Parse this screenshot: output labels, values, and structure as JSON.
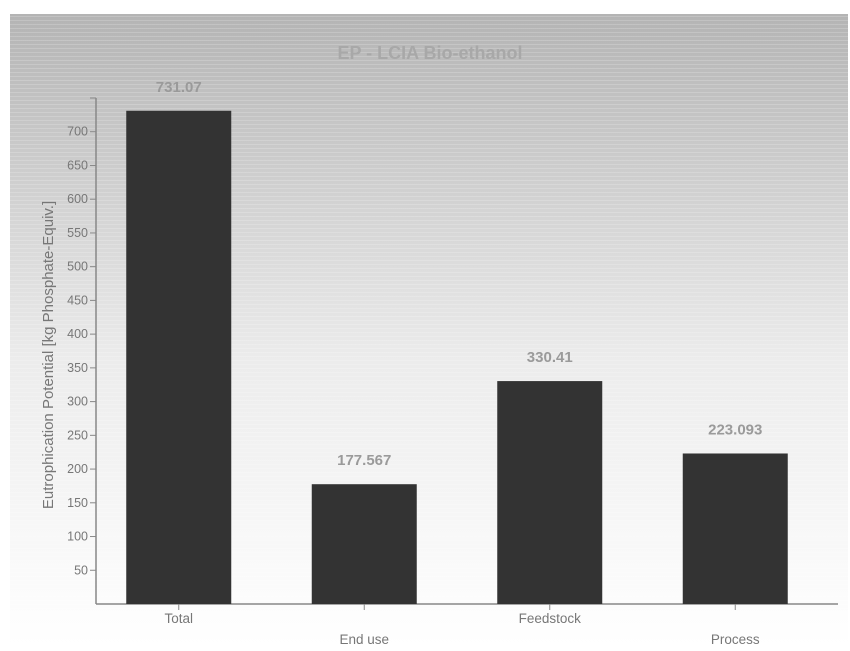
{
  "chart_data": {
    "type": "bar",
    "title": "EP - LCIA Bio-ethanol",
    "ylabel": "Eutrophication Potential [kg Phosphate-Equiv.]",
    "xlabel": "",
    "categories": [
      "Total",
      "End use",
      "Feedstock",
      "Process"
    ],
    "values": [
      731.07,
      177.567,
      330.41,
      223.093
    ],
    "value_labels": [
      "731.07",
      "177.567",
      "330.41",
      "223.093"
    ],
    "ylim": [
      0,
      750
    ],
    "yticks": [
      50,
      100,
      150,
      200,
      250,
      300,
      350,
      400,
      450,
      500,
      550,
      600,
      650,
      700
    ],
    "grid": false,
    "legend": "none",
    "colors": {
      "bar": "#333333",
      "value_label": "#9a9a9a",
      "axis_text": "#777777",
      "title": "#a8a8a8",
      "background_top": "#b4b4b4",
      "background_bottom": "#ffffff"
    }
  }
}
